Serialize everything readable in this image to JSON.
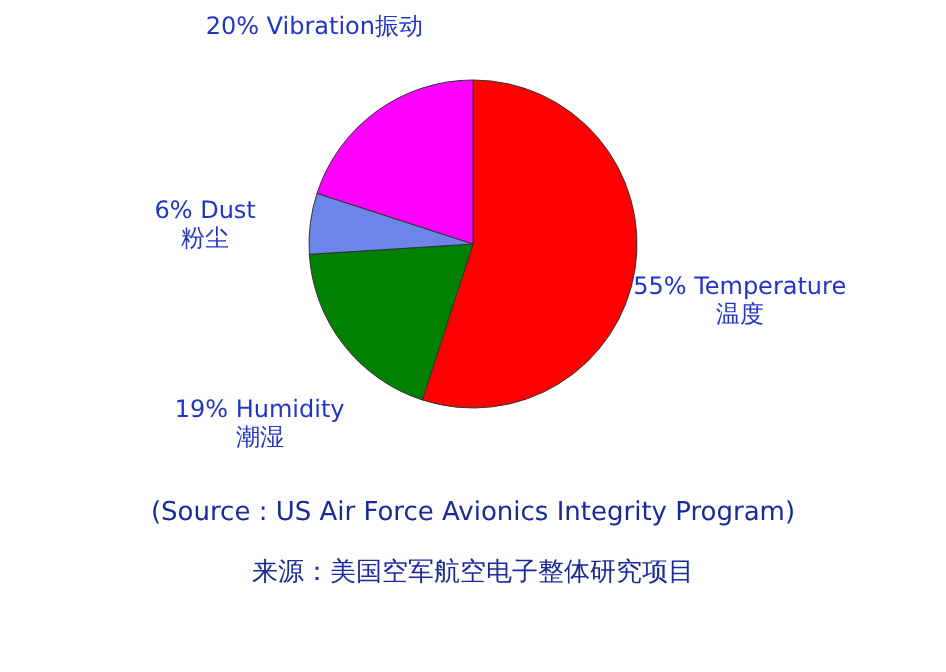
{
  "chart_data": {
    "type": "pie",
    "categories": [
      "Temperature\n温度",
      "Humidity\n潮湿",
      "Dust\n粉尘",
      "Vibration振动"
    ],
    "values": [
      55,
      19,
      6,
      20
    ],
    "value_labels": [
      "55%",
      "19%",
      "6%",
      "20%"
    ],
    "colors": [
      "#ff0000",
      "#008000",
      "#6b86e8",
      "#ff00ff"
    ],
    "annotations": [
      "(Source : US Air Force Avionics Integrity Program)",
      "来源：美国空军航空电子整体研究项目"
    ]
  }
}
